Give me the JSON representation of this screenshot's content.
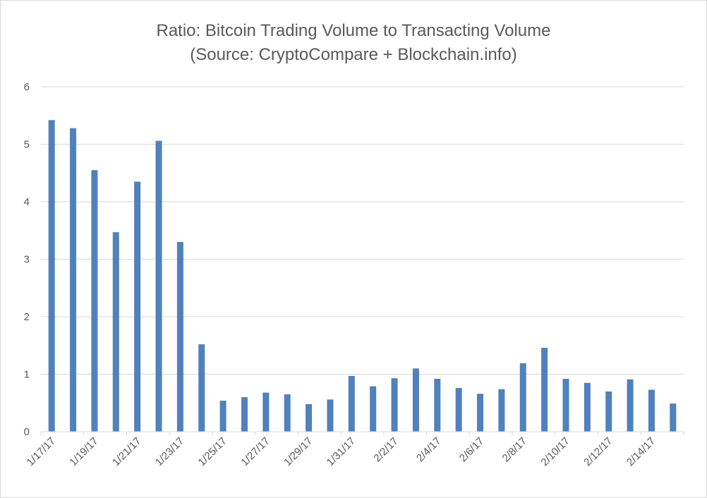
{
  "colors": {
    "bar": "#4f81bd",
    "grid": "#d9d9d9",
    "text": "#595959"
  },
  "chart_data": {
    "type": "bar",
    "title": "Ratio: Bitcoin Trading Volume to Transacting Volume",
    "subtitle": "(Source: CryptoCompare + Blockchain.info)",
    "ylim": [
      0,
      6
    ],
    "yticks": [
      "0",
      "1",
      "2",
      "3",
      "4",
      "5",
      "6"
    ],
    "grid": true,
    "legend": "none",
    "categories": [
      "1/17/17",
      "1/18/17",
      "1/19/17",
      "1/20/17",
      "1/21/17",
      "1/22/17",
      "1/23/17",
      "1/24/17",
      "1/25/17",
      "1/26/17",
      "1/27/17",
      "1/28/17",
      "1/29/17",
      "1/30/17",
      "1/31/17",
      "2/1/17",
      "2/2/17",
      "2/3/17",
      "2/4/17",
      "2/5/17",
      "2/6/17",
      "2/7/17",
      "2/8/17",
      "2/9/17",
      "2/10/17",
      "2/11/17",
      "2/12/17",
      "2/13/17",
      "2/14/17",
      "2/15/17"
    ],
    "xtick_labels": [
      "1/17/17",
      "1/19/17",
      "1/21/17",
      "1/23/17",
      "1/25/17",
      "1/27/17",
      "1/29/17",
      "1/31/17",
      "2/2/17",
      "2/4/17",
      "2/6/17",
      "2/8/17",
      "2/10/17",
      "2/12/17",
      "2/14/17"
    ],
    "values": [
      5.42,
      5.28,
      4.55,
      3.47,
      4.35,
      5.06,
      3.3,
      1.52,
      0.54,
      0.6,
      0.68,
      0.65,
      0.48,
      0.56,
      0.97,
      0.79,
      0.93,
      1.1,
      0.92,
      0.76,
      0.66,
      0.74,
      1.19,
      1.46,
      0.92,
      0.85,
      0.7,
      0.91,
      0.73,
      0.49
    ]
  }
}
